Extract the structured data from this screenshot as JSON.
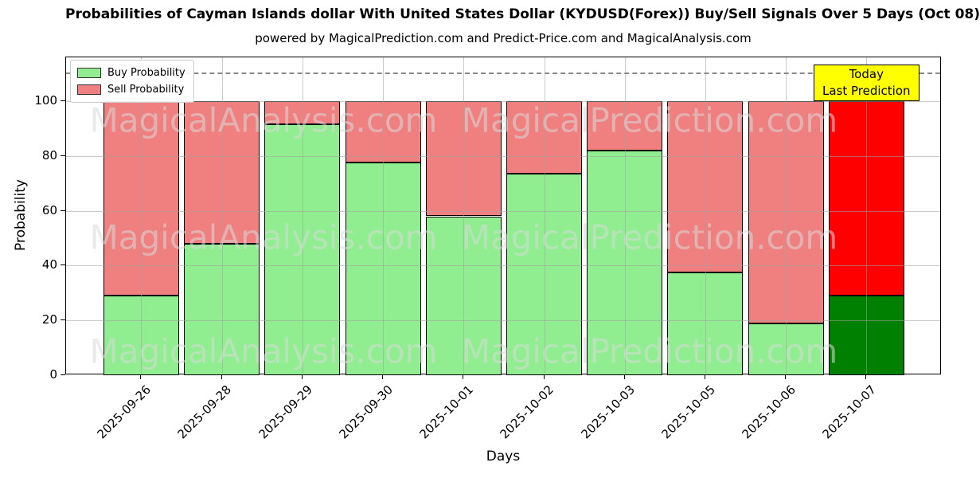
{
  "title": "Probabilities of Cayman Islands dollar With United States Dollar (KYDUSD(Forex)) Buy/Sell Signals Over 5 Days (Oct 08)",
  "subtitle": "powered by MagicalPrediction.com and Predict-Price.com and MagicalAnalysis.com",
  "legend": {
    "items": [
      {
        "label": "Buy Probability",
        "color": "#90EE90"
      },
      {
        "label": "Sell Probability",
        "color": "#F08080"
      }
    ]
  },
  "annotation": {
    "line1": "Today",
    "line2": "Last Prediction",
    "bg_color": "#FFFF00"
  },
  "watermarks": {
    "left_text": "MagicalAnalysis.com",
    "right_text": "MagicalPrediction.com"
  },
  "chart_data": {
    "type": "bar",
    "stacked": true,
    "title": "Probabilities of Cayman Islands dollar With United States Dollar (KYDUSD(Forex)) Buy/Sell Signals Over 5 Days (Oct 08)",
    "xlabel": "Days",
    "ylabel": "Probability",
    "categories": [
      "2025-09-26",
      "2025-09-28",
      "2025-09-29",
      "2025-09-30",
      "2025-10-01",
      "2025-10-02",
      "2025-10-03",
      "2025-10-05",
      "2025-10-06",
      "2025-10-07"
    ],
    "series": [
      {
        "name": "Buy Probability",
        "color": "#90EE90",
        "last_bar_color": "#008000",
        "values": [
          29,
          48,
          91.5,
          77.5,
          58,
          73.5,
          82,
          37.5,
          19,
          29
        ]
      },
      {
        "name": "Sell Probability",
        "color": "#F08080",
        "last_bar_color": "#FF0000",
        "values": [
          71,
          52,
          8.5,
          22.5,
          42,
          26.5,
          18,
          62.5,
          81,
          71
        ]
      }
    ],
    "bar_totals": [
      100,
      100,
      100,
      100,
      100,
      100,
      100,
      100,
      100,
      100
    ],
    "yticks": [
      0,
      20,
      40,
      60,
      80,
      100
    ],
    "ylim": [
      0,
      116
    ],
    "today_line_y": 110.5,
    "grid": true,
    "legend_position": "upper-left",
    "highlight_last_bar": true
  }
}
